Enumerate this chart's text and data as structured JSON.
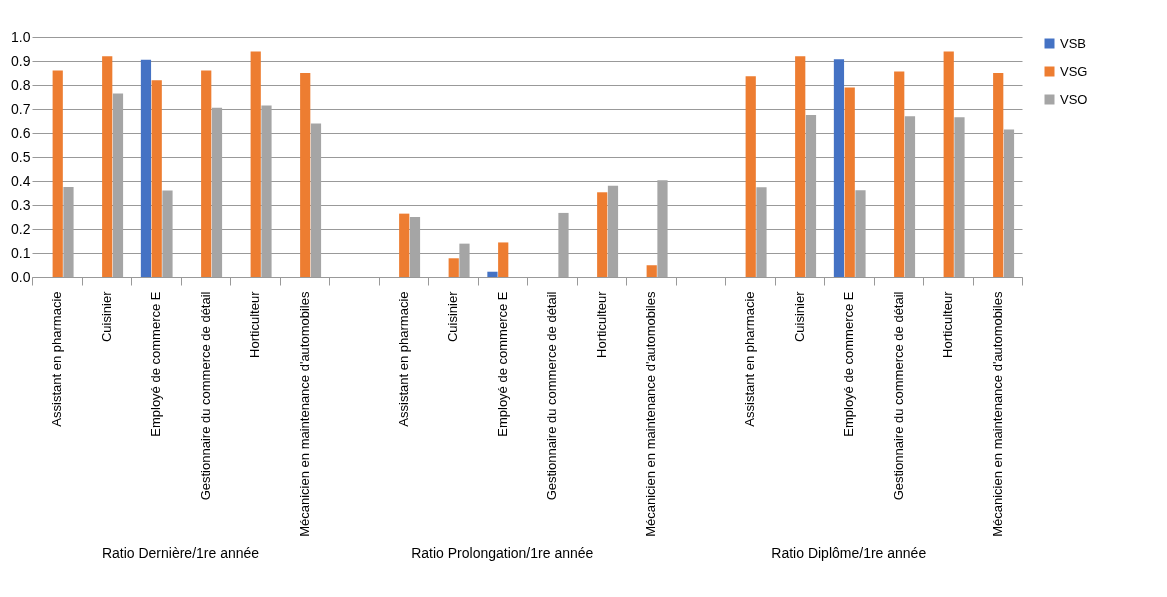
{
  "chart_data": {
    "type": "bar",
    "categories": [
      "Assistant en pharmacie",
      "Cuisinier",
      "Employé de commerce E",
      "Gestionnaire du commerce de détail",
      "Horticulteur",
      "Mécanicien en maintenance d'automobiles",
      null,
      "Assistant en pharmacie",
      "Cuisinier",
      "Employé de commerce E",
      "Gestionnaire du commerce de détail",
      "Horticulteur",
      "Mécanicien en maintenance d'automobiles",
      null,
      "Assistant en pharmacie",
      "Cuisinier",
      "Employé de commerce E",
      "Gestionnaire du commerce de détail",
      "Horticulteur",
      "Mécanicien en maintenance d'automobiles"
    ],
    "series": [
      {
        "name": "VSB",
        "color": "#4472c4",
        "values": [
          null,
          null,
          0.905,
          null,
          null,
          null,
          null,
          null,
          null,
          0.022,
          null,
          null,
          null,
          null,
          null,
          null,
          0.907,
          null,
          null,
          null
        ]
      },
      {
        "name": "VSG",
        "color": "#ed7d31",
        "values": [
          0.86,
          0.92,
          0.82,
          0.86,
          0.94,
          0.85,
          null,
          0.264,
          0.078,
          0.144,
          null,
          0.353,
          0.049,
          null,
          0.836,
          0.92,
          0.79,
          0.856,
          0.94,
          0.85
        ]
      },
      {
        "name": "VSO",
        "color": "#a5a5a5",
        "values": [
          0.375,
          0.765,
          0.36,
          0.705,
          0.715,
          0.64,
          null,
          0.25,
          0.139,
          null,
          0.267,
          0.38,
          0.403,
          null,
          0.374,
          0.675,
          0.361,
          0.67,
          0.666,
          0.615
        ]
      }
    ],
    "ylim": [
      0,
      1
    ],
    "yticks": [
      {
        "value": 0,
        "label": "0.0"
      },
      {
        "value": 0.1,
        "label": "0.1"
      },
      {
        "value": 0.2,
        "label": "0.2"
      },
      {
        "value": 0.3,
        "label": "0.3"
      },
      {
        "value": 0.4,
        "label": "0.4"
      },
      {
        "value": 0.5,
        "label": "0.5"
      },
      {
        "value": 0.6,
        "label": "0.6"
      },
      {
        "value": 0.7,
        "label": "0.7"
      },
      {
        "value": 0.8,
        "label": "0.8"
      },
      {
        "value": 0.9,
        "label": "0.9"
      },
      {
        "value": 1,
        "label": "1.0"
      }
    ],
    "grid": "y",
    "legend": "right",
    "annotations": [
      "Ratio Dernière/1re année",
      "Ratio Prolongation/1re année",
      "Ratio Diplôme/1re année"
    ]
  }
}
